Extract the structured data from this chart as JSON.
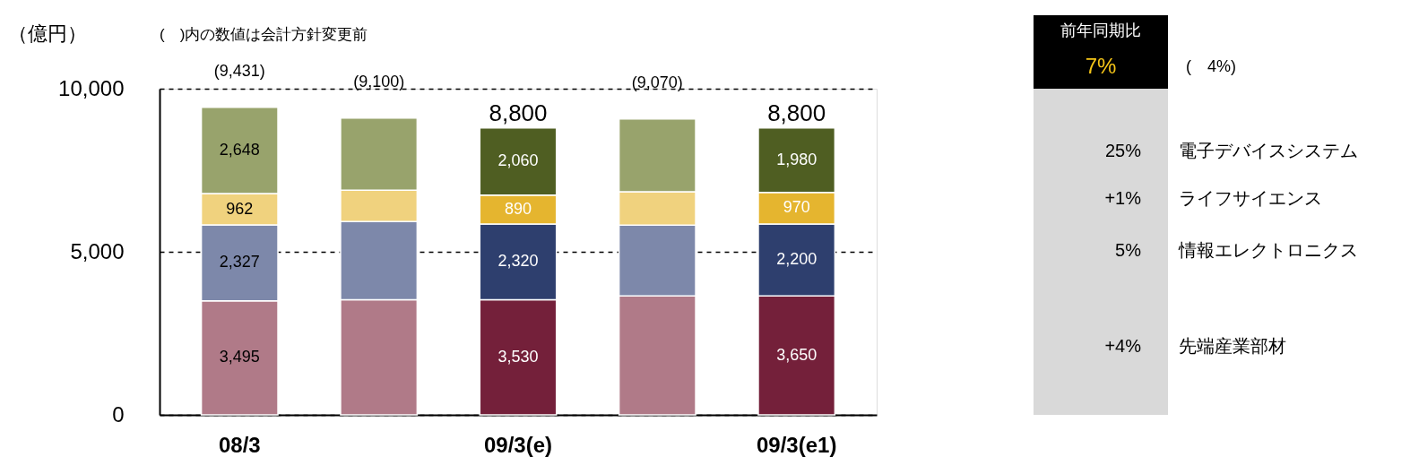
{
  "chart_data": {
    "type": "bar",
    "stacked": true,
    "ylabel": "（億円）",
    "categories": [
      "08/3",
      null,
      "09/3(e)",
      null,
      "09/3(e1)"
    ],
    "ylim": [
      0,
      10000
    ],
    "yticks": [
      {
        "value": 0,
        "label": "0"
      },
      {
        "value": 5000,
        "label": "5,000"
      },
      {
        "value": 10000,
        "label": "10,000"
      }
    ],
    "grid": "y",
    "series": [
      {
        "color": "#b07a88",
        "values": [
          3495,
          3530,
          null,
          3650,
          null
        ],
        "value_labels": [
          "3,495",
          null,
          null,
          null,
          null
        ]
      },
      {
        "color": "#7d88aa",
        "values": [
          2327,
          2400,
          null,
          2170,
          null
        ],
        "value_labels": [
          "2,327",
          null,
          null,
          null,
          null
        ]
      },
      {
        "color": "#f0d27e",
        "values": [
          962,
          960,
          null,
          1020,
          null
        ],
        "value_labels": [
          "962",
          null,
          null,
          null,
          null
        ]
      },
      {
        "color": "#98a36c",
        "values": [
          2648,
          2210,
          null,
          2230,
          null
        ],
        "value_labels": [
          "2,648",
          null,
          null,
          null,
          null
        ]
      },
      {
        "name": "先端産業部材",
        "color": "#74203a",
        "values": [
          null,
          null,
          3530,
          null,
          3650
        ],
        "value_labels": [
          null,
          null,
          "3,530",
          null,
          "3,650"
        ]
      },
      {
        "name": "情報エレクトロニクス",
        "color": "#2e3f6e",
        "values": [
          null,
          null,
          2320,
          null,
          2200
        ],
        "value_labels": [
          null,
          null,
          "2,320",
          null,
          "2,200"
        ]
      },
      {
        "name": "ライフサイエンス",
        "color": "#e5b52f",
        "values": [
          null,
          null,
          890,
          null,
          970
        ],
        "value_labels": [
          null,
          null,
          "890",
          null,
          "970"
        ]
      },
      {
        "name": "電子デバイスシステム",
        "color": "#4f5e22",
        "values": [
          null,
          null,
          2060,
          null,
          1980
        ],
        "value_labels": [
          null,
          null,
          "2,060",
          null,
          "1,980"
        ]
      }
    ],
    "totals": [
      "(9,431)",
      "(9,100)",
      "8,800",
      "(9,070)",
      "8,800"
    ],
    "annotations": [
      "(　)内の数値は会計方針変更前",
      "前年同期比",
      "7%",
      "(　4%)",
      "+4%",
      "5%",
      "+1%",
      "25%"
    ]
  }
}
